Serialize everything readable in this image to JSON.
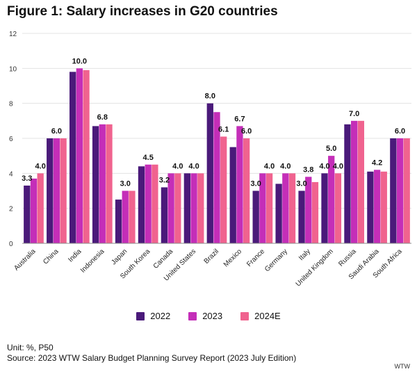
{
  "chart_data": {
    "type": "bar",
    "title": "Figure 1: Salary increases in G20 countries",
    "xlabel": "",
    "ylabel": "",
    "ylim": [
      0,
      12
    ],
    "yticks": [
      "0",
      "2",
      "4",
      "6",
      "8",
      "10",
      "12"
    ],
    "categories": [
      "Australia",
      "China",
      "India",
      "Indonesia",
      "Japan",
      "South Korea",
      "Canada",
      "United States",
      "Brazil",
      "Mexico",
      "France",
      "Germany",
      "Italy",
      "United Kingdom",
      "Russia",
      "Saudi Arabia",
      "South Africa"
    ],
    "series": [
      {
        "name": "2022",
        "color": "#4a1a7a",
        "values": [
          3.3,
          6.0,
          9.8,
          6.7,
          2.5,
          4.4,
          3.2,
          4.0,
          8.0,
          5.5,
          3.0,
          3.4,
          3.0,
          4.0,
          6.8,
          4.1,
          6.0
        ]
      },
      {
        "name": "2023",
        "color": "#c42eb8",
        "values": [
          3.7,
          6.0,
          10.0,
          6.8,
          3.0,
          4.5,
          4.0,
          4.0,
          7.5,
          6.7,
          4.0,
          4.0,
          3.8,
          5.0,
          7.0,
          4.2,
          6.0
        ]
      },
      {
        "name": "2024E",
        "color": "#f0638f",
        "values": [
          4.0,
          6.0,
          9.9,
          6.8,
          3.0,
          4.5,
          4.0,
          4.0,
          6.1,
          6.0,
          4.0,
          4.0,
          3.5,
          4.0,
          7.0,
          4.1,
          6.0
        ]
      }
    ],
    "annotations": [
      {
        "category": "Australia",
        "series": "2022",
        "label": "3.3"
      },
      {
        "category": "Australia",
        "series": "2024E",
        "label": "4.0"
      },
      {
        "category": "China",
        "series": "2023",
        "label": "6.0"
      },
      {
        "category": "India",
        "series": "2023",
        "label": "10.0"
      },
      {
        "category": "Indonesia",
        "series": "2023",
        "label": "6.8"
      },
      {
        "category": "Japan",
        "series": "2023",
        "label": "3.0"
      },
      {
        "category": "South Korea",
        "series": "2023",
        "label": "4.5"
      },
      {
        "category": "Canada",
        "series": "2022",
        "label": "3.2"
      },
      {
        "category": "Canada",
        "series": "2024E",
        "label": "4.0"
      },
      {
        "category": "United States",
        "series": "2023",
        "label": "4.0"
      },
      {
        "category": "Brazil",
        "series": "2022",
        "label": "8.0"
      },
      {
        "category": "Brazil",
        "series": "2024E",
        "label": "6.1"
      },
      {
        "category": "Mexico",
        "series": "2023",
        "label": "6.7"
      },
      {
        "category": "Mexico",
        "series": "2024E",
        "label": "6.0"
      },
      {
        "category": "France",
        "series": "2022",
        "label": "3.0"
      },
      {
        "category": "France",
        "series": "2024E",
        "label": "4.0"
      },
      {
        "category": "Germany",
        "series": "2023",
        "label": "4.0"
      },
      {
        "category": "Italy",
        "series": "2022",
        "label": "3.0"
      },
      {
        "category": "Italy",
        "series": "2023",
        "label": "3.8"
      },
      {
        "category": "United Kingdom",
        "series": "2022",
        "label": "4.0"
      },
      {
        "category": "United Kingdom",
        "series": "2023",
        "label": "5.0"
      },
      {
        "category": "United Kingdom",
        "series": "2024E",
        "label": "4.0"
      },
      {
        "category": "Russia",
        "series": "2023",
        "label": "7.0"
      },
      {
        "category": "Saudi Arabia",
        "series": "2023",
        "label": "4.2"
      },
      {
        "category": "South Africa",
        "series": "2023",
        "label": "6.0"
      }
    ],
    "grid": true,
    "legend_position": "bottom-center"
  },
  "footer": {
    "unit": "Unit: %, P50",
    "source": "Source: 2023 WTW Salary Budget Planning Survey Report (2023 July Edition)",
    "brand": "WTW"
  }
}
